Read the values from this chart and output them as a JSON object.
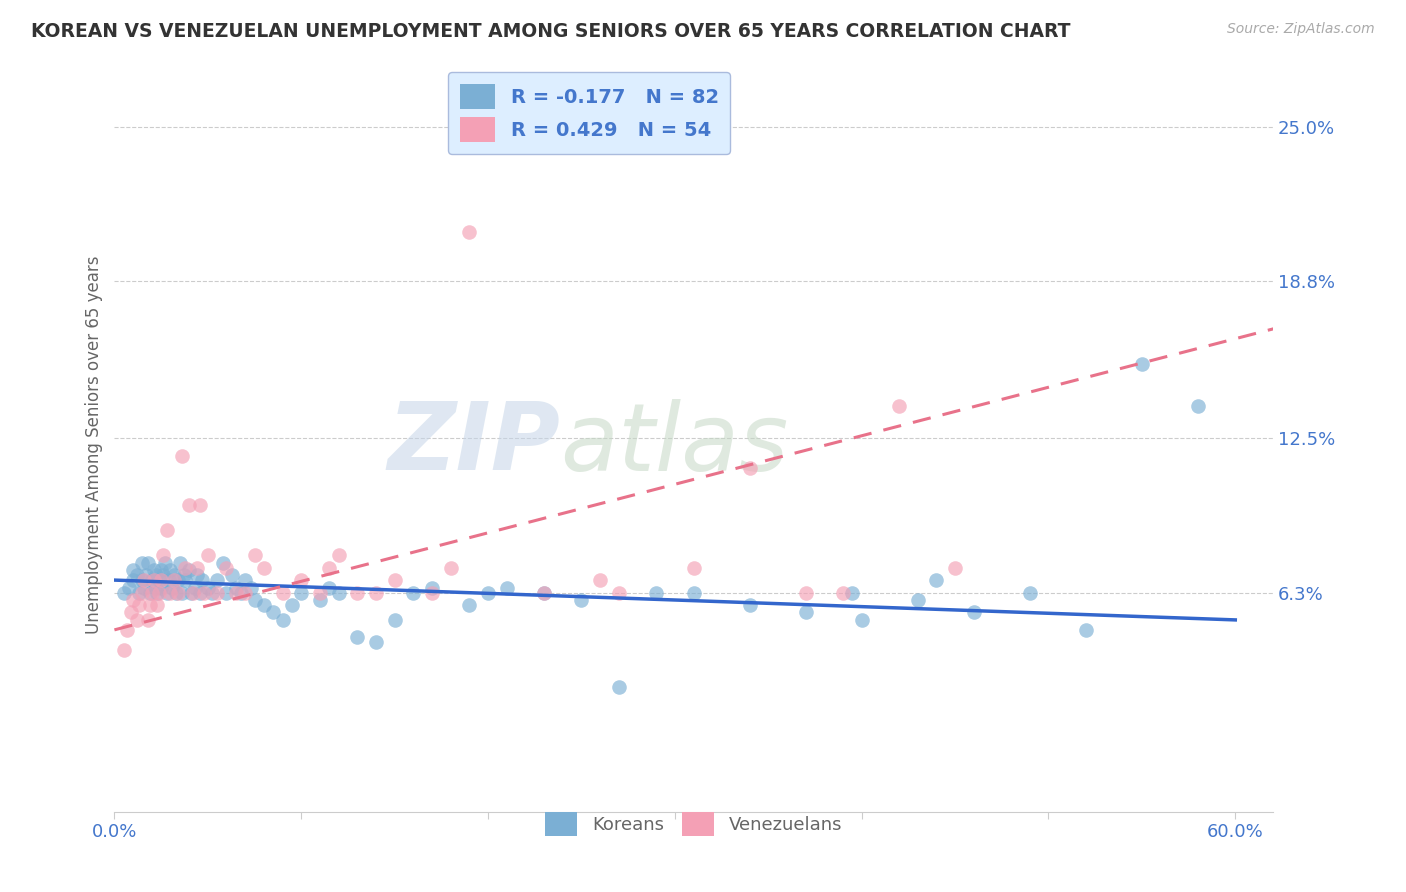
{
  "title": "KOREAN VS VENEZUELAN UNEMPLOYMENT AMONG SENIORS OVER 65 YEARS CORRELATION CHART",
  "source": "Source: ZipAtlas.com",
  "ylabel": "Unemployment Among Seniors over 65 years",
  "ytick_labels": [
    "25.0%",
    "18.8%",
    "12.5%",
    "6.3%"
  ],
  "ytick_values": [
    0.25,
    0.188,
    0.125,
    0.063
  ],
  "xlim": [
    0.0,
    0.62
  ],
  "ylim": [
    -0.025,
    0.27
  ],
  "korean_R": -0.177,
  "korean_N": 82,
  "venezuelan_R": 0.429,
  "venezuelan_N": 54,
  "korean_color": "#7bafd4",
  "venezuelan_color": "#f4a0b5",
  "korean_line_color": "#3366cc",
  "venezuelan_line_color": "#e8728a",
  "background_color": "#ffffff",
  "title_color": "#333333",
  "axis_label_color": "#666666",
  "tick_label_color": "#4477cc",
  "watermark_zip_color": "#c8d8ee",
  "watermark_atlas_color": "#c8d8cc",
  "legend_face_color": "#ddeeff",
  "legend_edge_color": "#aabbdd",
  "korean_line_start_y": 0.068,
  "korean_line_end_y": 0.052,
  "venezuelan_line_start_y": 0.048,
  "venezuelan_line_end_y": 0.165,
  "korean_scatter_x": [
    0.005,
    0.008,
    0.01,
    0.01,
    0.012,
    0.013,
    0.015,
    0.015,
    0.016,
    0.017,
    0.018,
    0.019,
    0.02,
    0.021,
    0.022,
    0.022,
    0.023,
    0.024,
    0.025,
    0.025,
    0.026,
    0.027,
    0.028,
    0.029,
    0.03,
    0.031,
    0.032,
    0.033,
    0.034,
    0.035,
    0.036,
    0.037,
    0.038,
    0.04,
    0.041,
    0.043,
    0.044,
    0.046,
    0.047,
    0.05,
    0.052,
    0.055,
    0.058,
    0.06,
    0.063,
    0.065,
    0.068,
    0.07,
    0.073,
    0.075,
    0.08,
    0.085,
    0.09,
    0.095,
    0.1,
    0.11,
    0.115,
    0.12,
    0.13,
    0.14,
    0.15,
    0.16,
    0.17,
    0.19,
    0.2,
    0.21,
    0.23,
    0.25,
    0.27,
    0.29,
    0.31,
    0.34,
    0.37,
    0.4,
    0.43,
    0.46,
    0.49,
    0.52,
    0.55,
    0.58,
    0.44,
    0.395
  ],
  "korean_scatter_y": [
    0.063,
    0.065,
    0.068,
    0.072,
    0.07,
    0.063,
    0.075,
    0.068,
    0.065,
    0.07,
    0.075,
    0.063,
    0.068,
    0.072,
    0.065,
    0.07,
    0.063,
    0.068,
    0.072,
    0.065,
    0.07,
    0.075,
    0.063,
    0.068,
    0.072,
    0.065,
    0.07,
    0.063,
    0.068,
    0.075,
    0.063,
    0.07,
    0.068,
    0.072,
    0.063,
    0.065,
    0.07,
    0.063,
    0.068,
    0.065,
    0.063,
    0.068,
    0.075,
    0.063,
    0.07,
    0.065,
    0.063,
    0.068,
    0.065,
    0.06,
    0.058,
    0.055,
    0.052,
    0.058,
    0.063,
    0.06,
    0.065,
    0.063,
    0.045,
    0.043,
    0.052,
    0.063,
    0.065,
    0.058,
    0.063,
    0.065,
    0.063,
    0.06,
    0.025,
    0.063,
    0.063,
    0.058,
    0.055,
    0.052,
    0.06,
    0.055,
    0.063,
    0.048,
    0.155,
    0.138,
    0.068,
    0.063
  ],
  "venezuelan_scatter_x": [
    0.005,
    0.007,
    0.009,
    0.01,
    0.012,
    0.013,
    0.015,
    0.016,
    0.018,
    0.019,
    0.02,
    0.021,
    0.023,
    0.024,
    0.025,
    0.026,
    0.028,
    0.03,
    0.032,
    0.034,
    0.036,
    0.038,
    0.04,
    0.042,
    0.044,
    0.046,
    0.048,
    0.05,
    0.055,
    0.06,
    0.065,
    0.07,
    0.075,
    0.08,
    0.09,
    0.1,
    0.11,
    0.115,
    0.12,
    0.13,
    0.14,
    0.15,
    0.17,
    0.18,
    0.19,
    0.23,
    0.26,
    0.27,
    0.31,
    0.34,
    0.37,
    0.39,
    0.42,
    0.45
  ],
  "venezuelan_scatter_y": [
    0.04,
    0.048,
    0.055,
    0.06,
    0.052,
    0.058,
    0.063,
    0.068,
    0.052,
    0.058,
    0.063,
    0.068,
    0.058,
    0.063,
    0.068,
    0.078,
    0.088,
    0.063,
    0.068,
    0.063,
    0.118,
    0.073,
    0.098,
    0.063,
    0.073,
    0.098,
    0.063,
    0.078,
    0.063,
    0.073,
    0.063,
    0.063,
    0.078,
    0.073,
    0.063,
    0.068,
    0.063,
    0.073,
    0.078,
    0.063,
    0.063,
    0.068,
    0.063,
    0.073,
    0.208,
    0.063,
    0.068,
    0.063,
    0.073,
    0.113,
    0.063,
    0.063,
    0.138,
    0.073
  ]
}
